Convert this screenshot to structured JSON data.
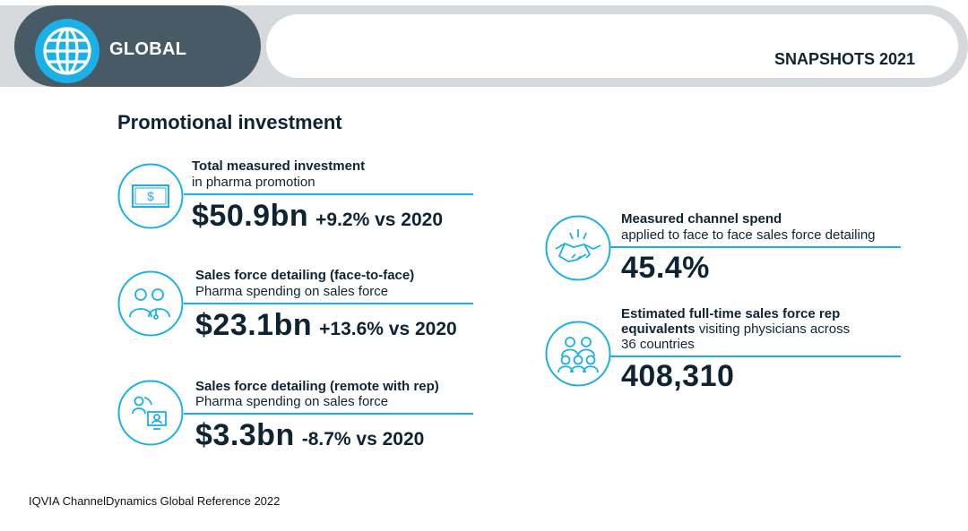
{
  "header": {
    "region_label": "GLOBAL",
    "report_label": "SNAPSHOTS 2021"
  },
  "section_title": "Promotional investment",
  "left_items": [
    {
      "title": "Total measured investment",
      "subtitle": "in pharma promotion",
      "value": "$50.9bn",
      "change": "+9.2% vs 2020",
      "icon": "dollar-bill-icon"
    },
    {
      "title": "Sales force detailing (face-to-face)",
      "subtitle": "Pharma spending on sales force",
      "value": "$23.1bn",
      "change": "+13.6% vs 2020",
      "icon": "doctors-icon"
    },
    {
      "title": "Sales force detailing (remote with rep)",
      "subtitle": "Pharma spending on sales force",
      "value": "$3.3bn",
      "change": "-8.7% vs 2020",
      "icon": "remote-meeting-icon"
    }
  ],
  "right_items": [
    {
      "title": "Measured channel spend",
      "subtitle": "applied to face to face sales force detailing",
      "value": "45.4%",
      "icon": "handshake-icon"
    },
    {
      "title": "Estimated full-time sales force rep",
      "title_line2": "equivalents",
      "subtitle_inline": "visiting physicians across",
      "subtitle_line3": "36 countries",
      "value": "408,310",
      "icon": "people-group-icon"
    }
  ],
  "footer": "IQVIA ChannelDynamics Global Reference 2022",
  "colors": {
    "accent": "#1cb1e6",
    "dark_tab": "#475a66",
    "bar": "#d6d9dc",
    "text": "#0f2433"
  }
}
